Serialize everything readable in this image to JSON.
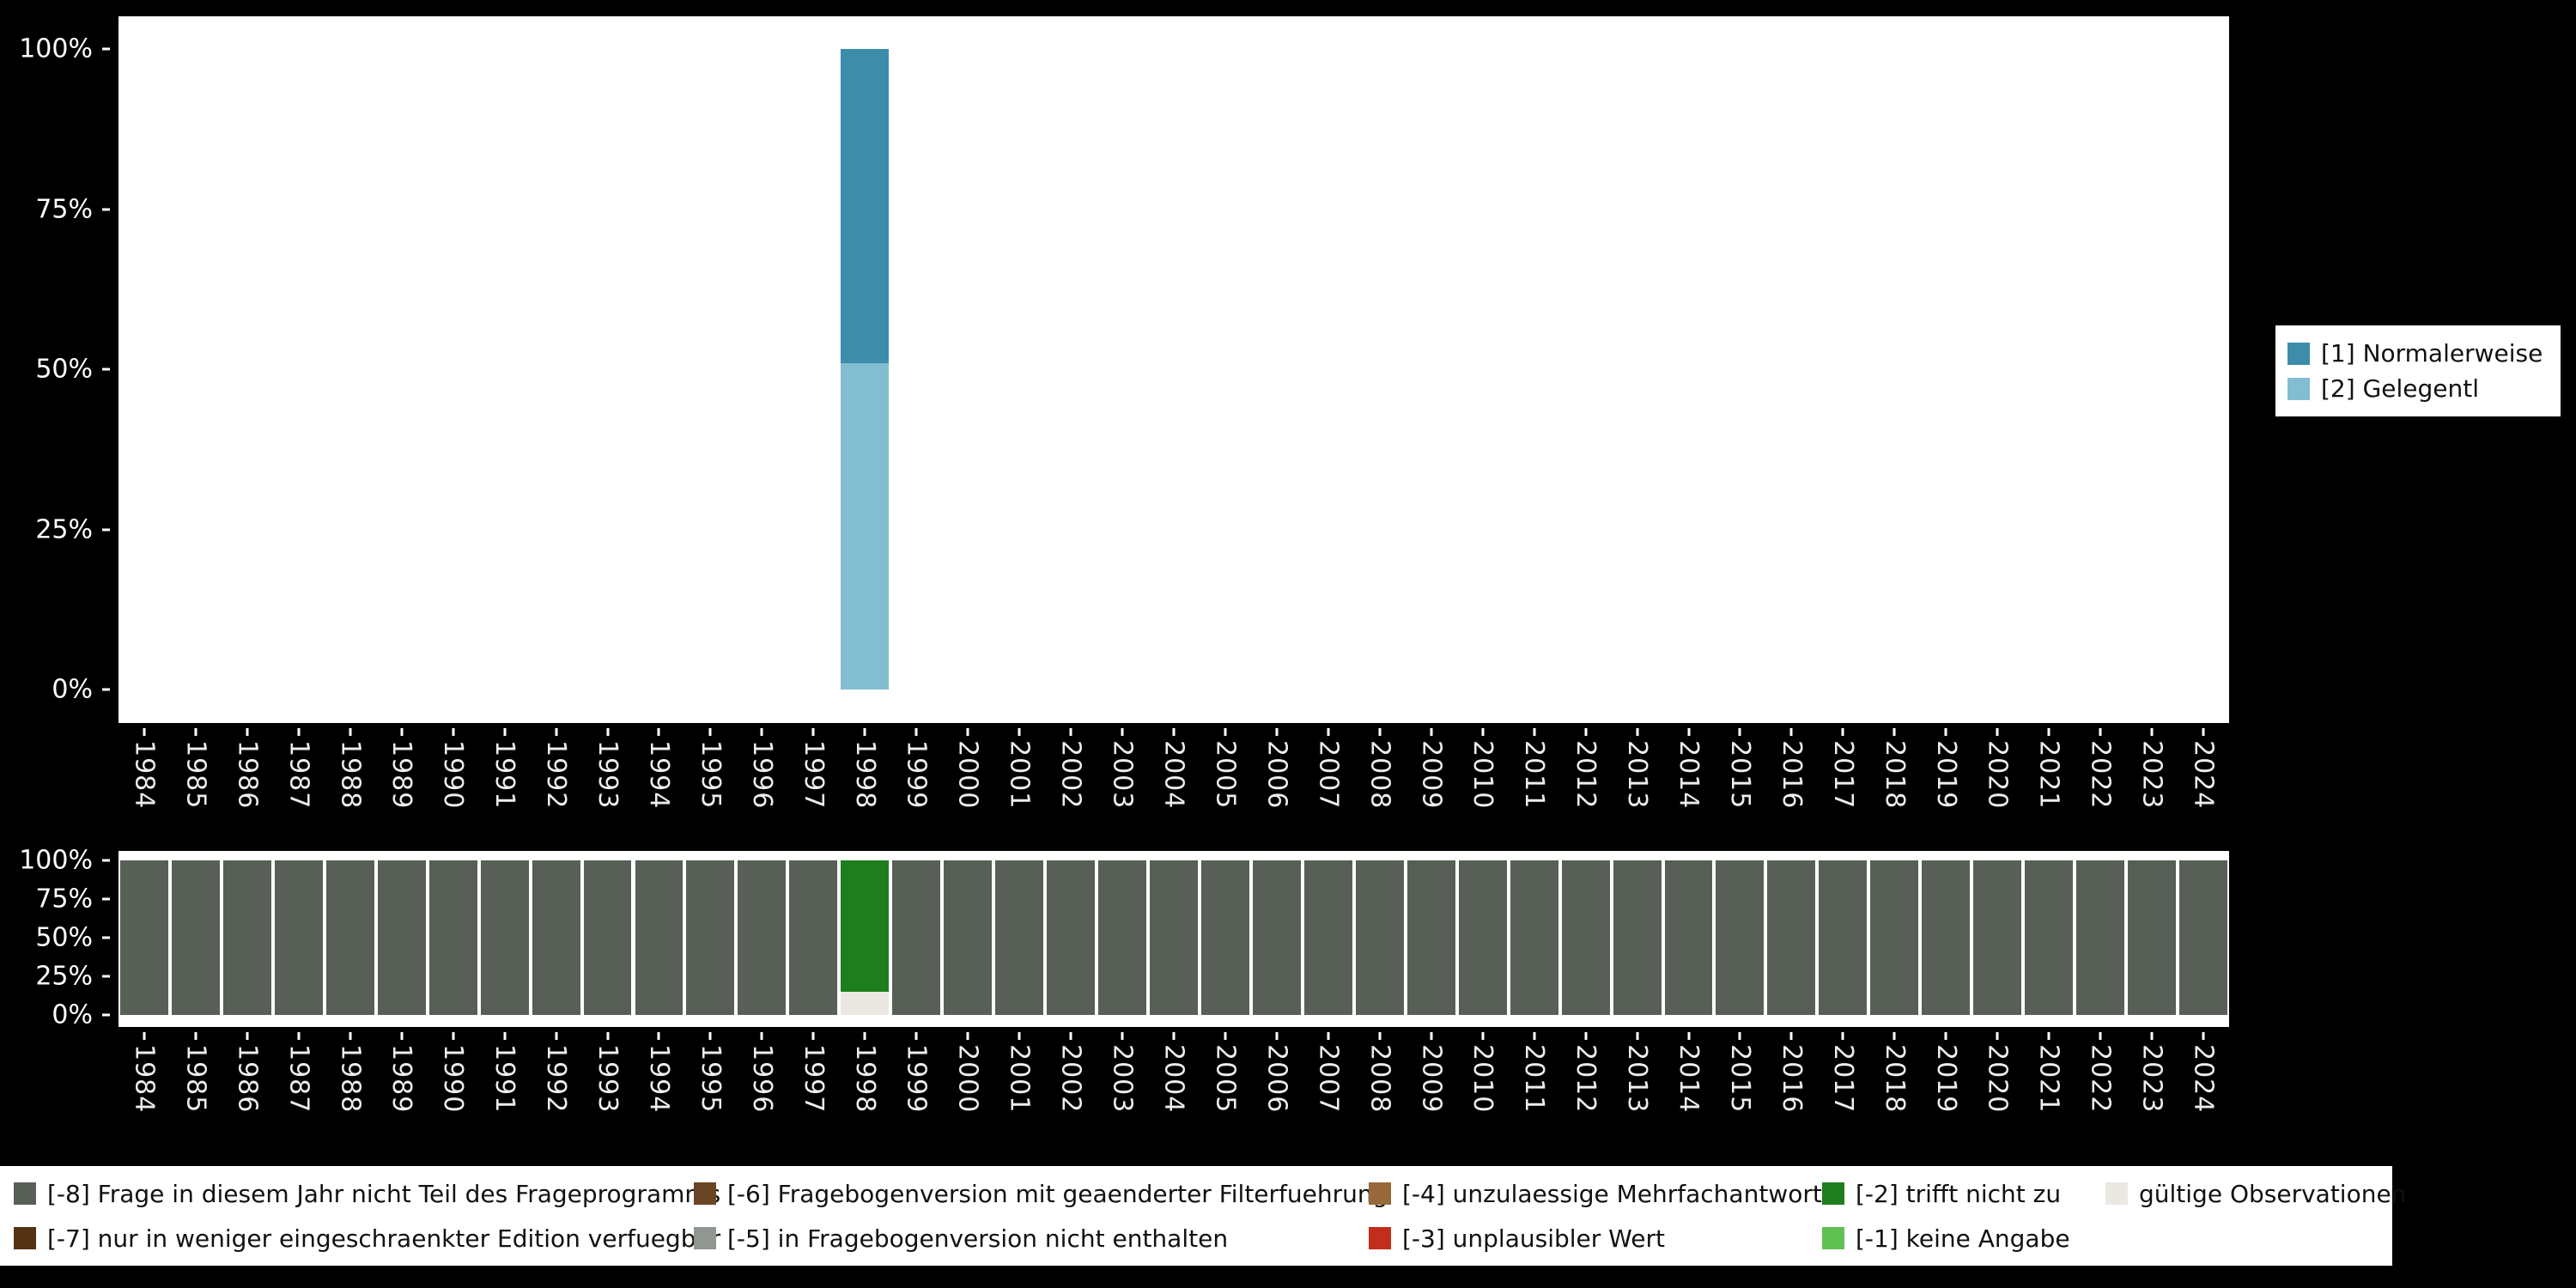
{
  "colors": {
    "page_background": "#000000",
    "plot_background": "#ffffff",
    "axis_text": "#ffffff"
  },
  "chart_data": [
    {
      "id": "valid-answers-by-year",
      "type": "bar",
      "stacked": true,
      "unit": "percent",
      "ylim": [
        0,
        100
      ],
      "grid": false,
      "legend_position": "right",
      "categories": [
        "1984",
        "1985",
        "1986",
        "1987",
        "1988",
        "1989",
        "1990",
        "1991",
        "1992",
        "1993",
        "1994",
        "1995",
        "1996",
        "1997",
        "1998",
        "1999",
        "2000",
        "2001",
        "2002",
        "2003",
        "2004",
        "2005",
        "2006",
        "2007",
        "2008",
        "2009",
        "2010",
        "2011",
        "2012",
        "2013",
        "2014",
        "2015",
        "2016",
        "2017",
        "2018",
        "2019",
        "2020",
        "2021",
        "2022",
        "2023",
        "2024"
      ],
      "yticks": [
        "100%",
        "75%",
        "50%",
        "25%",
        "0%"
      ],
      "legend_order": [
        "[1] Normalerweise",
        "[2] Gelegentl"
      ],
      "series": [
        {
          "name": "[2] Gelegentl",
          "color": "#82bdd1",
          "values": {
            "1998": 51
          }
        },
        {
          "name": "[1] Normalerweise",
          "color": "#3d8daa",
          "values": {
            "1998": 49
          }
        }
      ]
    },
    {
      "id": "missings-by-year",
      "type": "bar",
      "stacked": true,
      "unit": "percent",
      "ylim": [
        0,
        100
      ],
      "grid": false,
      "legend_position": "bottom",
      "categories": [
        "1984",
        "1985",
        "1986",
        "1987",
        "1988",
        "1989",
        "1990",
        "1991",
        "1992",
        "1993",
        "1994",
        "1995",
        "1996",
        "1997",
        "1998",
        "1999",
        "2000",
        "2001",
        "2002",
        "2003",
        "2004",
        "2005",
        "2006",
        "2007",
        "2008",
        "2009",
        "2010",
        "2011",
        "2012",
        "2013",
        "2014",
        "2015",
        "2016",
        "2017",
        "2018",
        "2019",
        "2020",
        "2021",
        "2022",
        "2023",
        "2024"
      ],
      "yticks": [
        "100%",
        "75%",
        "50%",
        "25%",
        "0%"
      ],
      "legend_order": [
        "[-8] Frage in diesem Jahr nicht Teil des Frageprogramms",
        "[-7] nur in weniger eingeschraenkter Edition verfuegbar",
        "[-6] Fragebogenversion mit geaenderter Filterfuehrung",
        "[-5] in Fragebogenversion nicht enthalten",
        "[-4] unzulaessige Mehrfachantwort",
        "[-3] unplausibler Wert",
        "[-2] trifft nicht zu",
        "[-1] keine Angabe",
        "gültige Observationen"
      ],
      "series": [
        {
          "name": "gültige Observationen",
          "color": "#eae8e1",
          "values": {
            "1998": 15
          }
        },
        {
          "name": "[-1] keine Angabe",
          "color": "#5fc152",
          "values": {}
        },
        {
          "name": "[-2] trifft nicht zu",
          "color": "#1e7e1e",
          "values": {
            "1998": 85
          }
        },
        {
          "name": "[-3] unplausibler Wert",
          "color": "#c32d1c",
          "values": {}
        },
        {
          "name": "[-4] unzulaessige Mehrfachantwort",
          "color": "#96683a",
          "values": {}
        },
        {
          "name": "[-5] in Fragebogenversion nicht enthalten",
          "color": "#909690",
          "values": {}
        },
        {
          "name": "[-6] Fragebogenversion mit geaenderter Filterfuehrung",
          "color": "#6b4523",
          "values": {}
        },
        {
          "name": "[-7] nur in weniger eingeschraenkter Edition verfuegbar",
          "color": "#543214",
          "values": {}
        },
        {
          "name": "[-8] Frage in diesem Jahr nicht Teil des Frageprogramms",
          "color": "#575f57",
          "values": {
            "default": 100,
            "1998": 0
          }
        }
      ]
    }
  ]
}
